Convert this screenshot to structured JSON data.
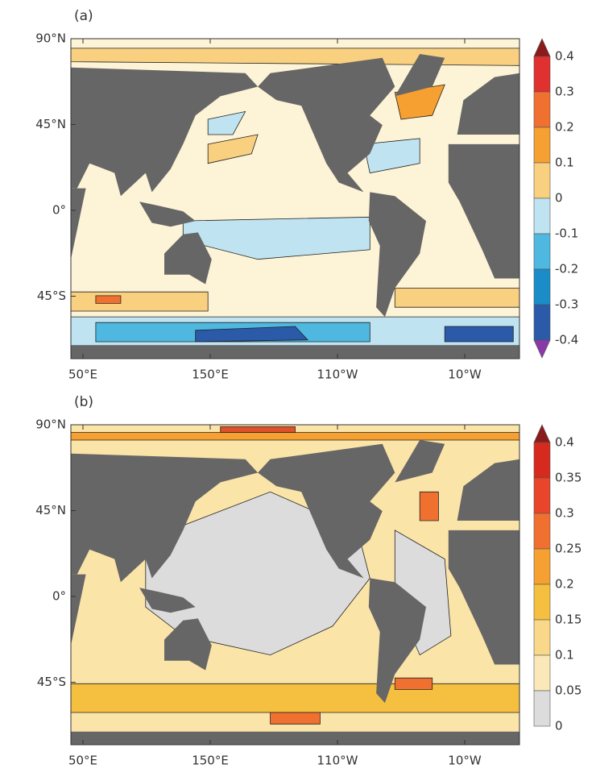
{
  "panels": [
    {
      "label": "(a)",
      "lat_labels": [
        "90°N",
        "45°N",
        "0°",
        "45°S"
      ],
      "lon_labels": [
        "50°E",
        "150°E",
        "110°W",
        "10°W"
      ],
      "colorbar_labels": [
        "0.4",
        "0.3",
        "0.2",
        "0.1",
        "0",
        "-0.1",
        "-0.2",
        "-0.3",
        "-0.4"
      ]
    },
    {
      "label": "(b)",
      "lat_labels": [
        "90°N",
        "45°N",
        "0°",
        "45°S"
      ],
      "lon_labels": [
        "50°E",
        "150°E",
        "110°W",
        "10°W"
      ],
      "colorbar_labels": [
        "0.4",
        "0.35",
        "0.3",
        "0.25",
        "0.2",
        "0.15",
        "0.1",
        "0.05",
        "0"
      ]
    }
  ]
}
